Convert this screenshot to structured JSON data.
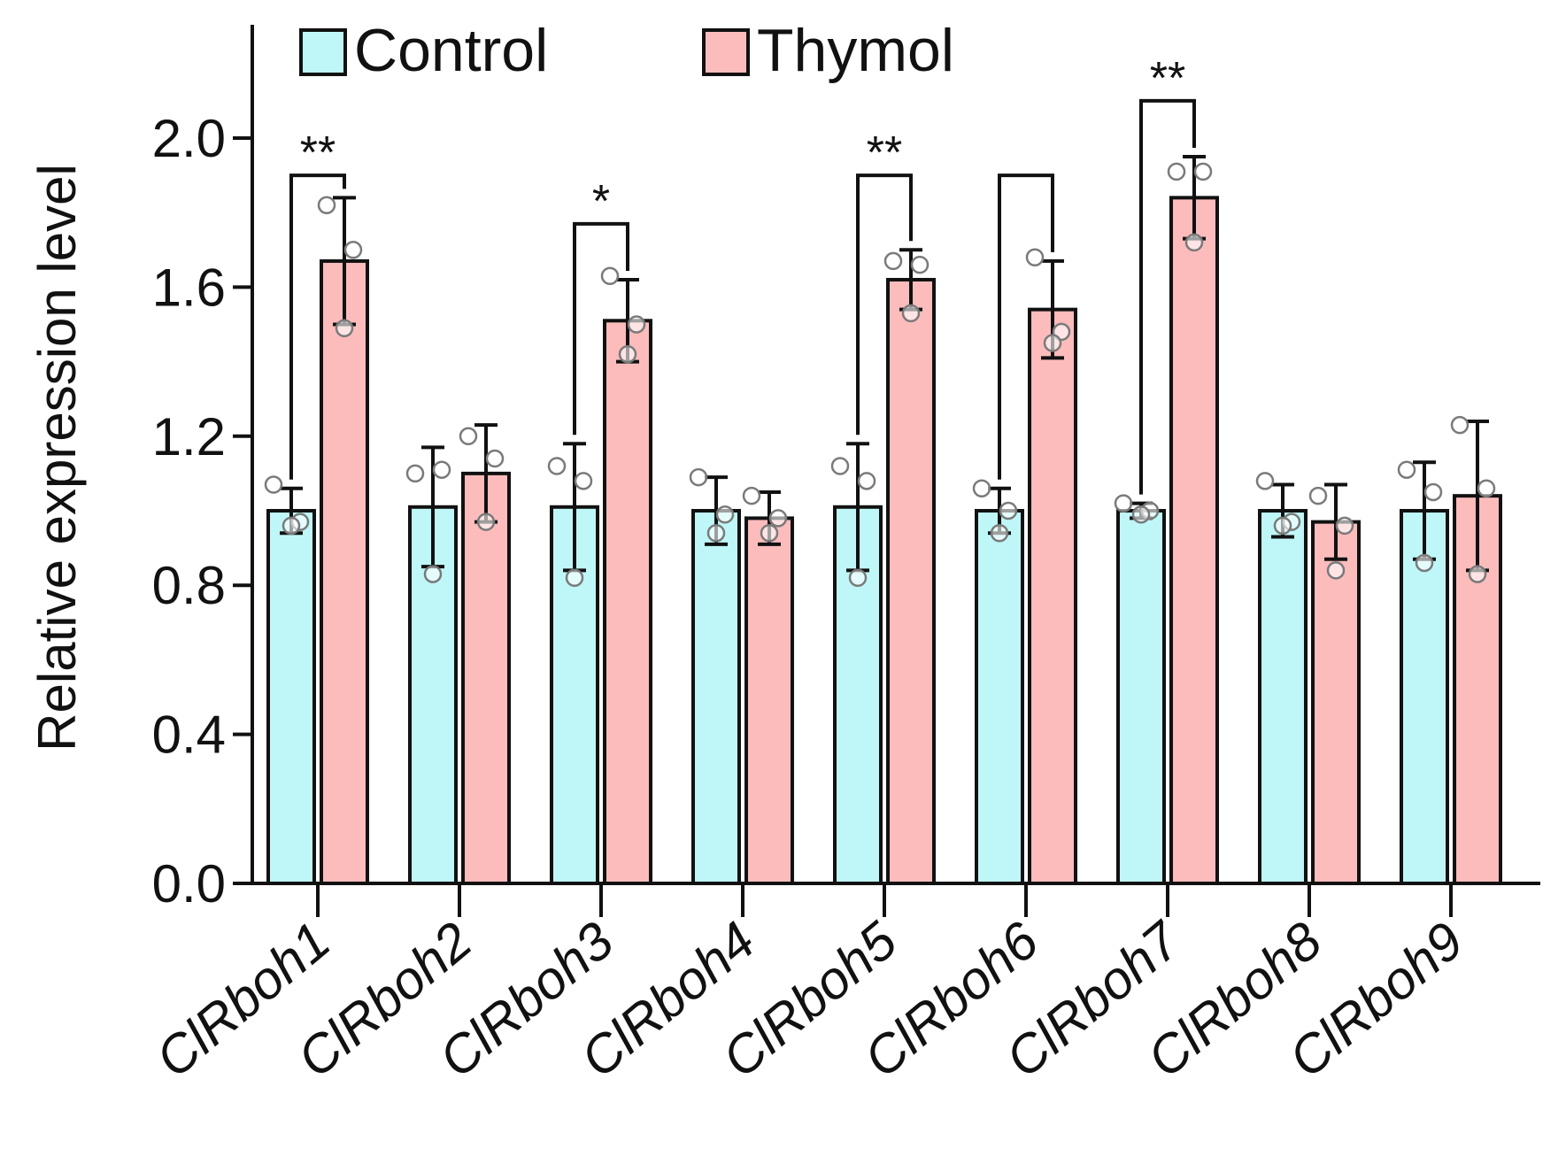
{
  "chart_data": {
    "type": "bar",
    "title": "",
    "xlabel": "",
    "ylabel": "Relative expression level",
    "ylim": [
      0,
      2.4
    ],
    "yticks": [
      0.0,
      0.4,
      0.8,
      1.2,
      1.6,
      2.0
    ],
    "ytick_labels": [
      "0.0",
      "0.4",
      "0.8",
      "1.2",
      "1.6",
      "2.0"
    ],
    "grid": false,
    "legend_position": "top-left",
    "categories": [
      "ClRboh1",
      "ClRboh2",
      "ClRboh3",
      "ClRboh4",
      "ClRboh5",
      "ClRboh6",
      "ClRboh7",
      "ClRboh8",
      "ClRboh9"
    ],
    "series": [
      {
        "name": "Control",
        "color": "#bff7f8",
        "values": [
          1.0,
          1.01,
          1.01,
          1.0,
          1.01,
          1.0,
          1.0,
          1.0,
          1.0
        ],
        "errors": [
          0.06,
          0.16,
          0.17,
          0.09,
          0.17,
          0.06,
          0.02,
          0.07,
          0.13
        ],
        "points": [
          [
            1.07,
            0.97,
            0.96
          ],
          [
            1.1,
            1.11,
            0.83
          ],
          [
            1.12,
            1.08,
            0.82
          ],
          [
            1.09,
            0.99,
            0.94
          ],
          [
            1.12,
            1.08,
            0.82
          ],
          [
            1.06,
            1.0,
            0.94
          ],
          [
            1.02,
            1.0,
            0.99
          ],
          [
            1.08,
            0.97,
            0.96
          ],
          [
            1.11,
            1.05,
            0.86
          ]
        ]
      },
      {
        "name": "Thymol",
        "color": "#fcbcbc",
        "values": [
          1.67,
          1.1,
          1.51,
          0.98,
          1.62,
          1.54,
          1.84,
          0.97,
          1.04
        ],
        "errors": [
          0.17,
          0.13,
          0.11,
          0.07,
          0.08,
          0.13,
          0.11,
          0.1,
          0.2
        ],
        "points": [
          [
            1.82,
            1.7,
            1.49
          ],
          [
            1.2,
            1.14,
            0.97
          ],
          [
            1.63,
            1.5,
            1.42
          ],
          [
            1.04,
            0.98,
            0.94
          ],
          [
            1.67,
            1.66,
            1.53
          ],
          [
            1.68,
            1.48,
            1.45
          ],
          [
            1.91,
            1.91,
            1.72
          ],
          [
            1.04,
            0.96,
            0.84
          ],
          [
            1.23,
            1.06,
            0.83
          ]
        ]
      }
    ],
    "significance": [
      {
        "category_index": 0,
        "label": "**",
        "bracket_top": 1.9
      },
      {
        "category_index": 2,
        "label": "*",
        "bracket_top": 1.77
      },
      {
        "category_index": 4,
        "label": "**",
        "bracket_top": 1.9
      },
      {
        "category_index": 5,
        "label": "",
        "bracket_top": 1.9
      },
      {
        "category_index": 6,
        "label": "**",
        "bracket_top": 2.1
      }
    ]
  }
}
